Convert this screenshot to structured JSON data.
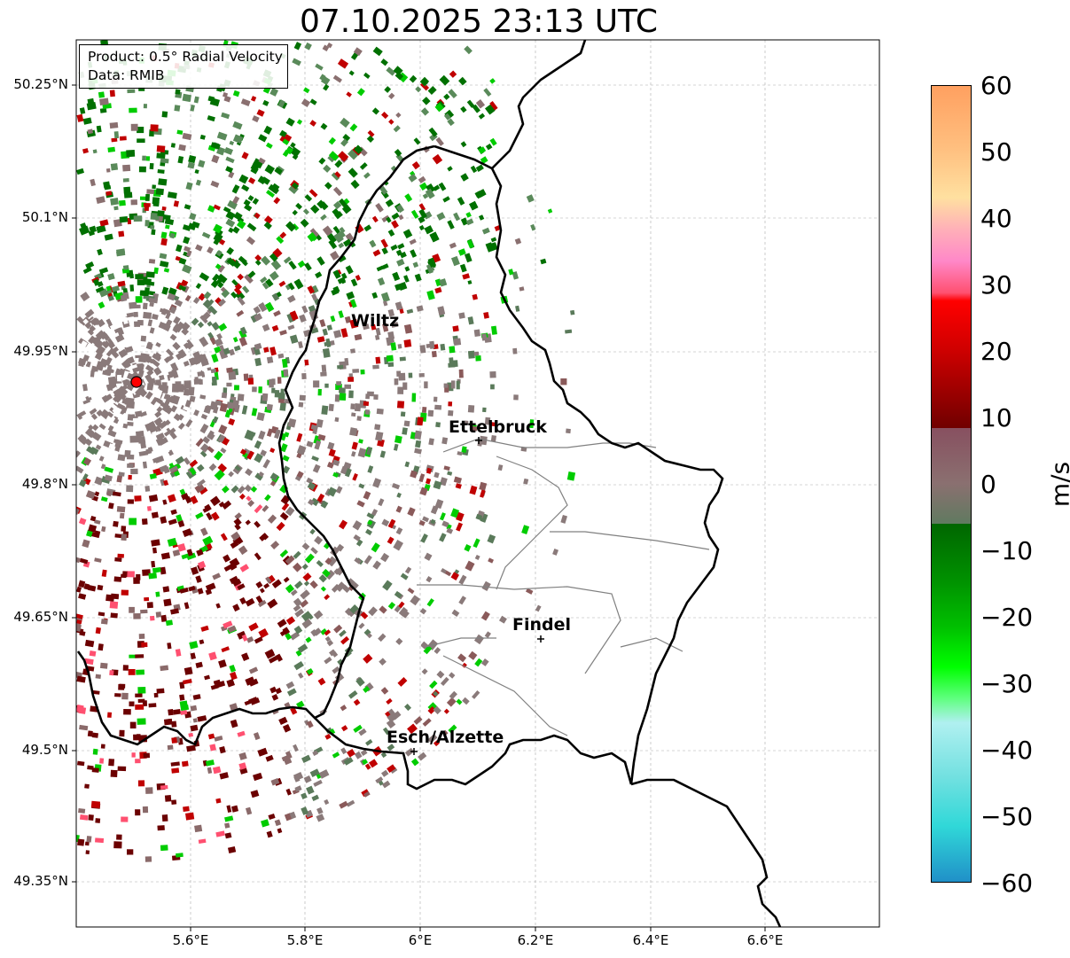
{
  "title": "07.10.2025 23:13 UTC",
  "info": {
    "product": "Product: 0.5° Radial Velocity",
    "data_source": "Data: RMIB"
  },
  "axes": {
    "lat_ticks": [
      "50.25°N",
      "50.1°N",
      "49.95°N",
      "49.8°N",
      "49.65°N",
      "49.5°N",
      "49.35°N"
    ],
    "lon_ticks": [
      "5.6°E",
      "5.8°E",
      "6°E",
      "6.2°E",
      "6.4°E",
      "6.6°E"
    ]
  },
  "cities": [
    {
      "name": "Wiltz"
    },
    {
      "name": "Ettelbruck"
    },
    {
      "name": "Findel"
    },
    {
      "name": "Esch/Alzette"
    }
  ],
  "colorbar": {
    "label": "m/s",
    "min": -60,
    "max": 60,
    "ticks": [
      "60",
      "50",
      "40",
      "30",
      "20",
      "10",
      "0",
      "−10",
      "−20",
      "−30",
      "−40",
      "−50",
      "−60"
    ]
  },
  "colors": {
    "receding_dark": "#6b0000",
    "receding_red": "#e00000",
    "zero": "#8a7a7a",
    "approach_green": "#007a00",
    "approach_bright": "#00dd00",
    "radar_site": "#ff0000"
  }
}
